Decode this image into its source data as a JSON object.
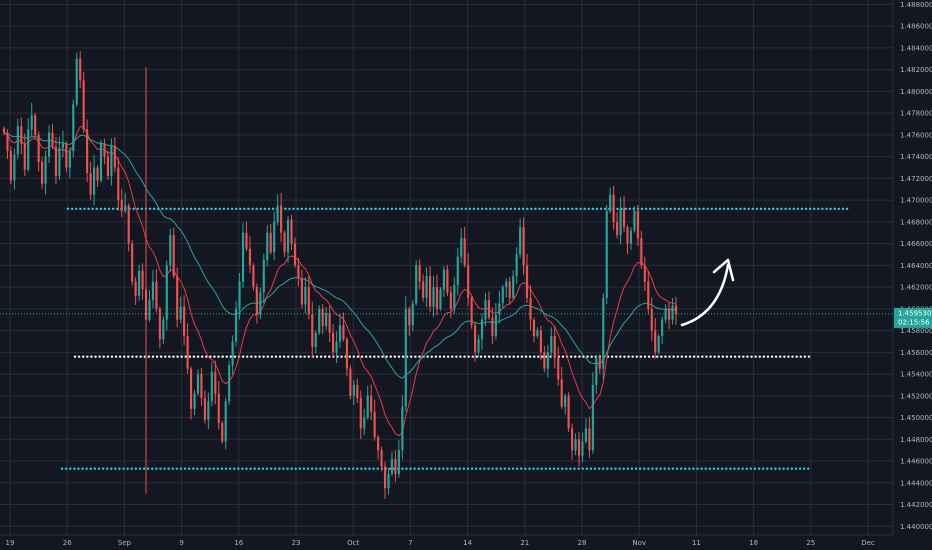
{
  "chart_data": {
    "type": "candlestick",
    "x_ticks": [
      "19",
      "26",
      "Sep",
      "9",
      "16",
      "23",
      "Oct",
      "7",
      "14",
      "21",
      "28",
      "Nov",
      "11",
      "18",
      "25",
      "Dec"
    ],
    "y_ticks": [
      "1.48800000",
      "1.48600000",
      "1.48400000",
      "1.48200000",
      "1.48000000",
      "1.47800000",
      "1.47600000",
      "1.47400000",
      "1.47200000",
      "1.47000000",
      "1.46800000",
      "1.46600000",
      "1.46400000",
      "1.46200000",
      "1.46000000",
      "1.45800000",
      "1.45600000",
      "1.45400000",
      "1.45200000",
      "1.45000000",
      "1.44800000",
      "1.44600000",
      "1.44400000",
      "1.44200000",
      "1.44000000"
    ],
    "ylim": [
      1.4392,
      1.4884
    ],
    "last_price": {
      "price": 1.45953,
      "label": "1.45953000",
      "timer": "02:15:56",
      "color": "#26a69a"
    },
    "colors": {
      "up": "#26a69a",
      "down": "#ef5350",
      "ma_fast": "#f23645",
      "ma_slow": "#26a69a",
      "grid": "#2a2e39",
      "level_cyan": "#22d3ee",
      "level_white": "#ffffff",
      "arrow": "#ffffff"
    },
    "levels": [
      {
        "name": "resistance",
        "price": 1.4692,
        "style": "dotted",
        "color": "#22d3ee"
      },
      {
        "name": "support-mid",
        "price": 1.4556,
        "style": "dotted",
        "color": "#ffffff"
      },
      {
        "name": "support-low",
        "price": 1.4453,
        "style": "dotted",
        "color": "#22d3ee"
      }
    ],
    "closes": [
      1.4762,
      1.4745,
      1.4718,
      1.4742,
      1.4768,
      1.4752,
      1.4728,
      1.4765,
      1.4778,
      1.476,
      1.4735,
      1.4715,
      1.474,
      1.4762,
      1.4749,
      1.4722,
      1.4748,
      1.4752,
      1.473,
      1.4745,
      1.4788,
      1.483,
      1.481,
      1.4765,
      1.4725,
      1.4705,
      1.473,
      1.4718,
      1.4752,
      1.474,
      1.4722,
      1.475,
      1.473,
      1.47,
      1.469,
      1.4695,
      1.466,
      1.4625,
      1.4612,
      1.4635,
      1.4618,
      1.459,
      1.4608,
      1.4625,
      1.46,
      1.4572,
      1.459,
      1.464,
      1.4668,
      1.463,
      1.459,
      1.4602,
      1.4575,
      1.4545,
      1.4508,
      1.4522,
      1.454,
      1.4518,
      1.4498,
      1.4515,
      1.4542,
      1.4522,
      1.4495,
      1.4478,
      1.4515,
      1.4548,
      1.457,
      1.46,
      1.4625,
      1.467,
      1.4655,
      1.464,
      1.462,
      1.4595,
      1.4615,
      1.4645,
      1.467,
      1.4652,
      1.468,
      1.4695,
      1.467,
      1.4652,
      1.4682,
      1.466,
      1.464,
      1.4628,
      1.4604,
      1.462,
      1.4595,
      1.4565,
      1.4578,
      1.46,
      1.4584,
      1.4596,
      1.4578,
      1.456,
      1.457,
      1.4585,
      1.4572,
      1.4545,
      1.452,
      1.453,
      1.4518,
      1.449,
      1.45,
      1.452,
      1.4505,
      1.4482,
      1.447,
      1.4455,
      1.4435,
      1.4448,
      1.4462,
      1.4448,
      1.447,
      1.451,
      1.46,
      1.4585,
      1.4605,
      1.464,
      1.4625,
      1.461,
      1.463,
      1.4602,
      1.462,
      1.46,
      1.4618,
      1.4636,
      1.4615,
      1.46,
      1.4622,
      1.4648,
      1.4665,
      1.464,
      1.461,
      1.4585,
      1.456,
      1.4572,
      1.459,
      1.4608,
      1.4592,
      1.4575,
      1.4595,
      1.4605,
      1.462,
      1.4625,
      1.461,
      1.463,
      1.465,
      1.4675,
      1.464,
      1.461,
      1.459,
      1.4575,
      1.458,
      1.456,
      1.4545,
      1.456,
      1.4575,
      1.4555,
      1.4535,
      1.451,
      1.452,
      1.449,
      1.447,
      1.448,
      1.4465,
      1.4478,
      1.449,
      1.447,
      1.453,
      1.4555,
      1.4545,
      1.461,
      1.469,
      1.4705,
      1.468,
      1.4668,
      1.4692,
      1.4675,
      1.466,
      1.4672,
      1.469,
      1.4665,
      1.464,
      1.4625,
      1.46,
      1.458,
      1.456,
      1.4575,
      1.459,
      1.46,
      1.459,
      1.4603,
      1.4595
    ]
  }
}
